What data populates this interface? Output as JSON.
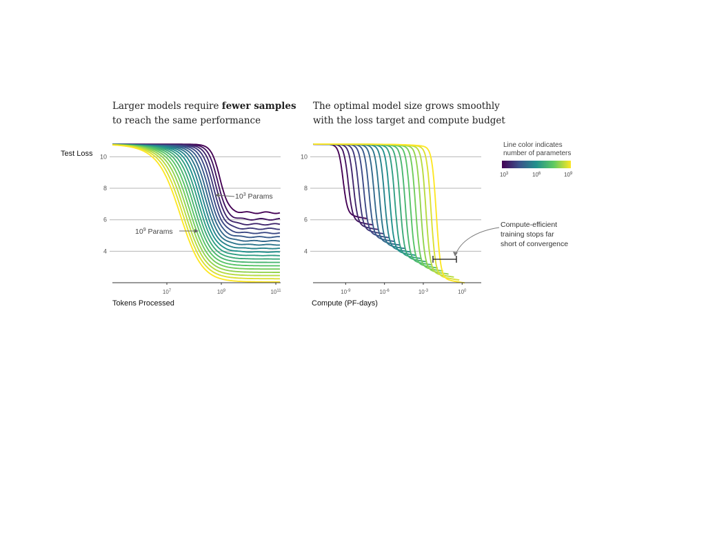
{
  "figure": {
    "left_title_part1": "Larger models require ",
    "left_title_bold": "fewer samples",
    "left_title_line2": "to reach the same performance",
    "right_title_line1": "The optimal model size grows smoothly",
    "right_title_line2": "with the loss target and compute budget",
    "legend_line1": "Line color indicates",
    "legend_line2": "number of parameters",
    "legend_ticks": [
      {
        "base": "10",
        "exp": "3"
      },
      {
        "base": "10",
        "exp": "6"
      },
      {
        "base": "10",
        "exp": "9"
      }
    ],
    "annotation_small": {
      "base": "10",
      "exp": "3",
      "suffix": " Params"
    },
    "annotation_large": {
      "base": "10",
      "exp": "9",
      "suffix": " Params"
    },
    "compute_note": [
      "Compute-efficient",
      "training stops far",
      "short of convergence"
    ],
    "colormap": [
      "#440154",
      "#3b528b",
      "#21918c",
      "#5ec962",
      "#fde725"
    ]
  },
  "chart_data": [
    {
      "type": "line",
      "xlabel": "Tokens Processed",
      "ylabel": "Test Loss",
      "xscale": "log",
      "xlim": [
        100000.0,
        150000000000.0
      ],
      "ylim": [
        2,
        11.2
      ],
      "yticks": [
        4,
        6,
        8,
        10
      ],
      "xticks": [
        {
          "base": "10",
          "exp": "7"
        },
        {
          "base": "10",
          "exp": "9"
        },
        {
          "base": "10",
          "exp": "11"
        }
      ],
      "xtick_values": [
        10000000.0,
        1000000000.0,
        100000000000.0
      ],
      "grid": "horizontal",
      "color_encodes": "number of parameters (10^3 to 10^9, viridis)",
      "curves": [
        {
          "params": 1000.0,
          "x": [
            100000.0,
            30000000.0,
            600000000.0,
            2000000000.0,
            10000000000.0,
            130000000000.0
          ],
          "y": [
            10.8,
            10.8,
            8.6,
            6.8,
            6.5,
            6.45
          ]
        },
        {
          "params": 1000000000.0,
          "x": [
            100000.0,
            1000000.0,
            10000000.0,
            100000000.0,
            1000000000.0,
            10000000000.0,
            130000000000.0
          ],
          "y": [
            10.8,
            10.0,
            8.3,
            5.5,
            3.6,
            2.9,
            2.4
          ]
        }
      ]
    },
    {
      "type": "line",
      "xlabel": "Compute (PF-days)",
      "xscale": "log",
      "xlim": [
        3e-12,
        30
      ],
      "ylim": [
        2,
        11.2
      ],
      "yticks": [
        4,
        6,
        8,
        10
      ],
      "xticks": [
        {
          "base": "10",
          "exp": "-9"
        },
        {
          "base": "10",
          "exp": "-6"
        },
        {
          "base": "10",
          "exp": "-3"
        },
        {
          "base": "10",
          "exp": "0"
        }
      ],
      "xtick_values": [
        1e-09,
        1e-06,
        0.001,
        1
      ],
      "grid": "horizontal",
      "color_encodes": "number of parameters (10^3 to 10^9, viridis)",
      "curves": [
        {
          "params": 1000.0,
          "x": [
            3e-12,
            3e-10,
            3e-09,
            1e-08,
            1e-07
          ],
          "y": [
            10.8,
            10.8,
            6.6,
            6.4,
            6.4
          ]
        },
        {
          "params": 1000000000.0,
          "x": [
            3e-12,
            1e-05,
            0.001,
            0.01,
            10
          ],
          "y": [
            10.8,
            10.7,
            8.0,
            4.8,
            2.4
          ]
        }
      ],
      "compute_efficient_interval": {
        "x": [
          0.001,
          0.03
        ],
        "y": 3.5
      }
    }
  ]
}
